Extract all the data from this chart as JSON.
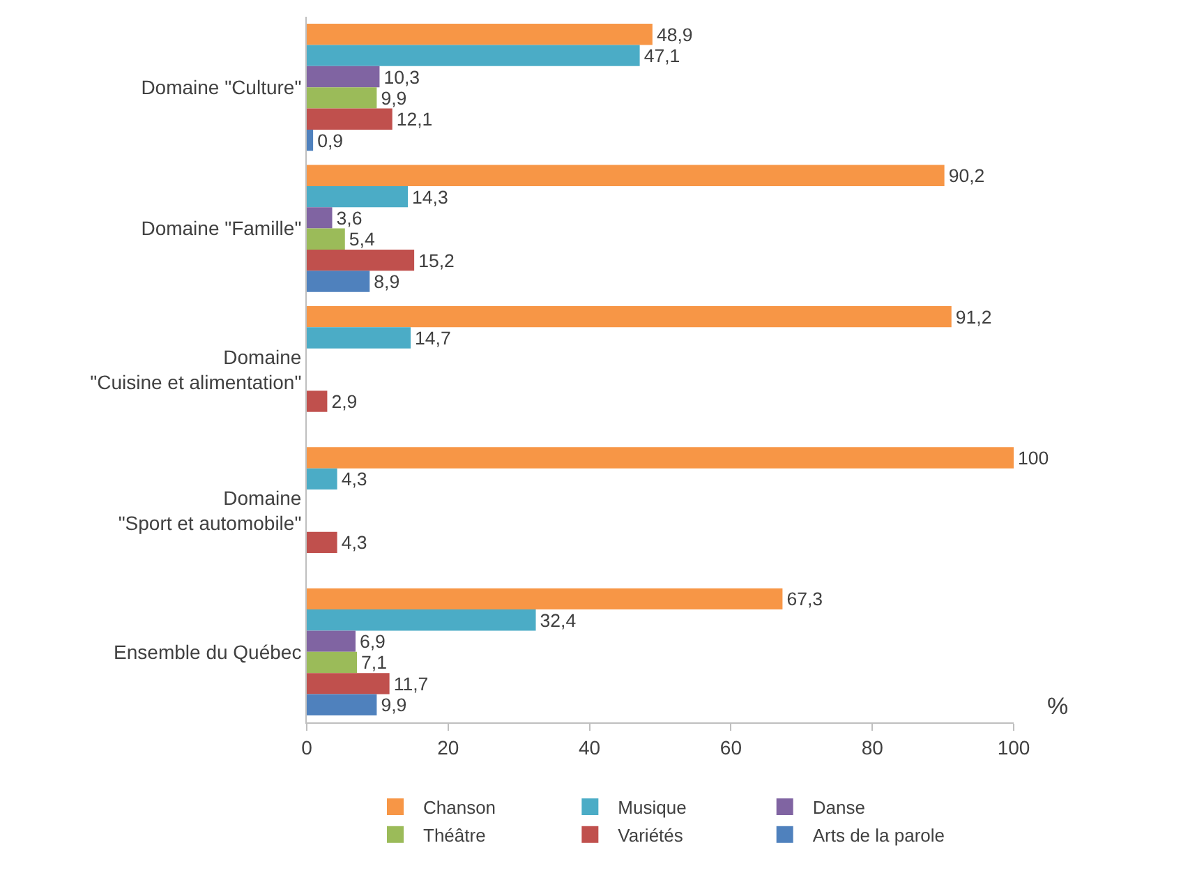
{
  "chart_data": {
    "type": "bar",
    "orientation": "horizontal",
    "xlabel": "%",
    "categories": [
      "Domaine \"Culture\"",
      "Domaine \"Famille\"",
      "Domaine\n\"Cuisine et alimentation\"",
      "Domaine\n\"Sport et automobile\"",
      "Ensemble du Québec"
    ],
    "series": [
      {
        "name": "Chanson",
        "color": "#f79646",
        "values": [
          48.9,
          90.2,
          91.2,
          100,
          67.3
        ],
        "value_labels": [
          "48,9",
          "90,2",
          "91,2",
          "100",
          "67,3"
        ]
      },
      {
        "name": "Musique",
        "color": "#4bacc6",
        "values": [
          47.1,
          14.3,
          14.7,
          4.3,
          32.4
        ],
        "value_labels": [
          "47,1",
          "14,3",
          "14,7",
          "4,3",
          "32,4"
        ]
      },
      {
        "name": "Danse",
        "color": "#8064a2",
        "values": [
          10.3,
          3.6,
          null,
          null,
          6.9
        ],
        "value_labels": [
          "10,3",
          "3,6",
          null,
          null,
          "6,9"
        ]
      },
      {
        "name": "Théâtre",
        "color": "#9bbb59",
        "values": [
          9.9,
          5.4,
          null,
          null,
          7.1
        ],
        "value_labels": [
          "9,9",
          "5,4",
          null,
          null,
          "7,1"
        ]
      },
      {
        "name": "Variétés",
        "color": "#c0504d",
        "values": [
          12.1,
          15.2,
          2.9,
          4.3,
          11.7
        ],
        "value_labels": [
          "12,1",
          "15,2",
          "2,9",
          "4,3",
          "11,7"
        ]
      },
      {
        "name": "Arts de la parole",
        "color": "#4f81bd",
        "values": [
          0.9,
          8.9,
          null,
          null,
          9.9
        ],
        "value_labels": [
          "0,9",
          "8,9",
          null,
          null,
          "9,9"
        ]
      }
    ],
    "xlim": [
      0,
      100
    ],
    "xticks": [
      0,
      20,
      40,
      60,
      80,
      100
    ],
    "legend": "bottom"
  }
}
